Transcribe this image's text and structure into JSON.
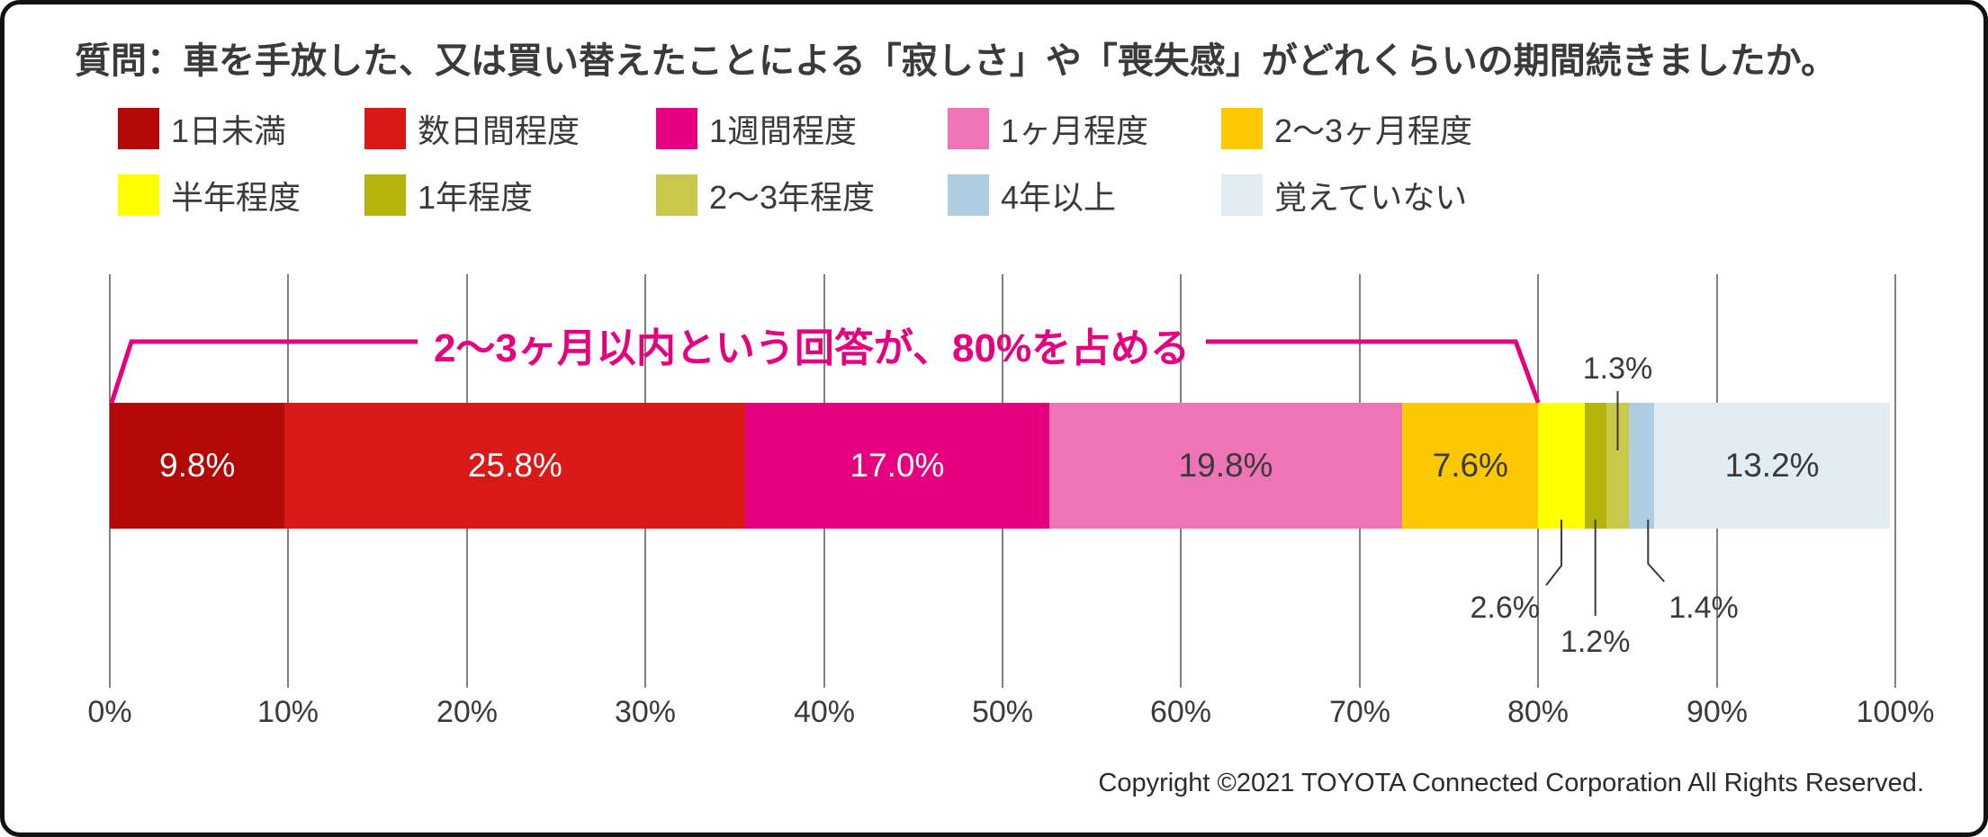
{
  "title": "質問：車を手放した、又は買い替えたことによる「寂しさ」や「喪失感」がどれくらいの期間続きましたか。",
  "annotation": {
    "text": "2〜3ヶ月以内という回答が、80%を占める",
    "color": "#e4007e",
    "range_start_percent": 0,
    "range_end_percent": 80
  },
  "copyright": "Copyright ©2021 TOYOTA Connected Corporation All Rights Reserved.",
  "chart_data": {
    "type": "bar",
    "variant": "stacked-horizontal",
    "unit": "%",
    "grid": true,
    "legend_position": "top",
    "axis": {
      "min": 0,
      "max": 100,
      "tick_step": 10,
      "tick_labels": [
        "0%",
        "10%",
        "20%",
        "30%",
        "40%",
        "50%",
        "60%",
        "70%",
        "80%",
        "90%",
        "100%"
      ]
    },
    "series": [
      {
        "name": "1日未満",
        "value": 9.8,
        "label": "9.8%",
        "color": "#b20808",
        "label_placement": "inside",
        "label_color": "#ffffff"
      },
      {
        "name": "数日間程度",
        "value": 25.8,
        "label": "25.8%",
        "color": "#d91818",
        "label_placement": "inside",
        "label_color": "#ffffff"
      },
      {
        "name": "1週間程度",
        "value": 17.0,
        "label": "17.0%",
        "color": "#e4007e",
        "label_placement": "inside",
        "label_color": "#ffffff"
      },
      {
        "name": "1ヶ月程度",
        "value": 19.8,
        "label": "19.8%",
        "color": "#ef74b5",
        "label_placement": "inside",
        "label_color": "#3a3a3a"
      },
      {
        "name": "2〜3ヶ月程度",
        "value": 7.6,
        "label": "7.6%",
        "color": "#fcc800",
        "label_placement": "inside",
        "label_color": "#3a3a3a"
      },
      {
        "name": "半年程度",
        "value": 2.6,
        "label": "2.6%",
        "color": "#ffff00",
        "label_placement": "below-left",
        "label_color": "#3a3a3a"
      },
      {
        "name": "1年程度",
        "value": 1.2,
        "label": "1.2%",
        "color": "#b5b40c",
        "label_placement": "below",
        "label_color": "#3a3a3a"
      },
      {
        "name": "2〜3年程度",
        "value": 1.3,
        "label": "1.3%",
        "color": "#c8c94a",
        "label_placement": "above",
        "label_color": "#3a3a3a"
      },
      {
        "name": "4年以上",
        "value": 1.4,
        "label": "1.4%",
        "color": "#aecde0",
        "label_placement": "below-right",
        "label_color": "#3a3a3a"
      },
      {
        "name": "覚えていない",
        "value": 13.2,
        "label": "13.2%",
        "color": "#e2ecf3",
        "label_placement": "inside",
        "label_color": "#3a3a3a"
      }
    ]
  }
}
